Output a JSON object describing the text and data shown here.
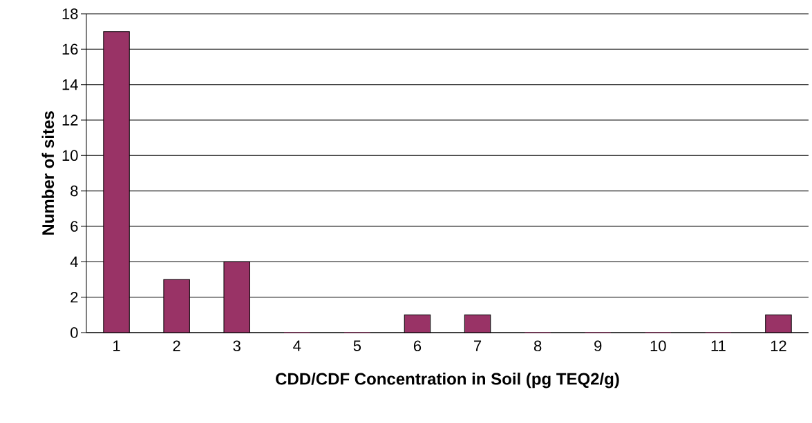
{
  "chart_data": {
    "type": "bar",
    "xlabel": "CDD/CDF Concentration in Soil (pg TEQ2/g)",
    "ylabel": "Number of sites",
    "categories": [
      "1",
      "2",
      "3",
      "4",
      "5",
      "6",
      "7",
      "8",
      "9",
      "10",
      "11",
      "12"
    ],
    "values": [
      17,
      3,
      4,
      0,
      0,
      1,
      1,
      0,
      0,
      0,
      0,
      1
    ],
    "color": "#993366",
    "ylim": [
      0,
      18
    ],
    "yticks": [
      0,
      2,
      4,
      6,
      8,
      10,
      12,
      14,
      16,
      18
    ],
    "grid": "y"
  }
}
